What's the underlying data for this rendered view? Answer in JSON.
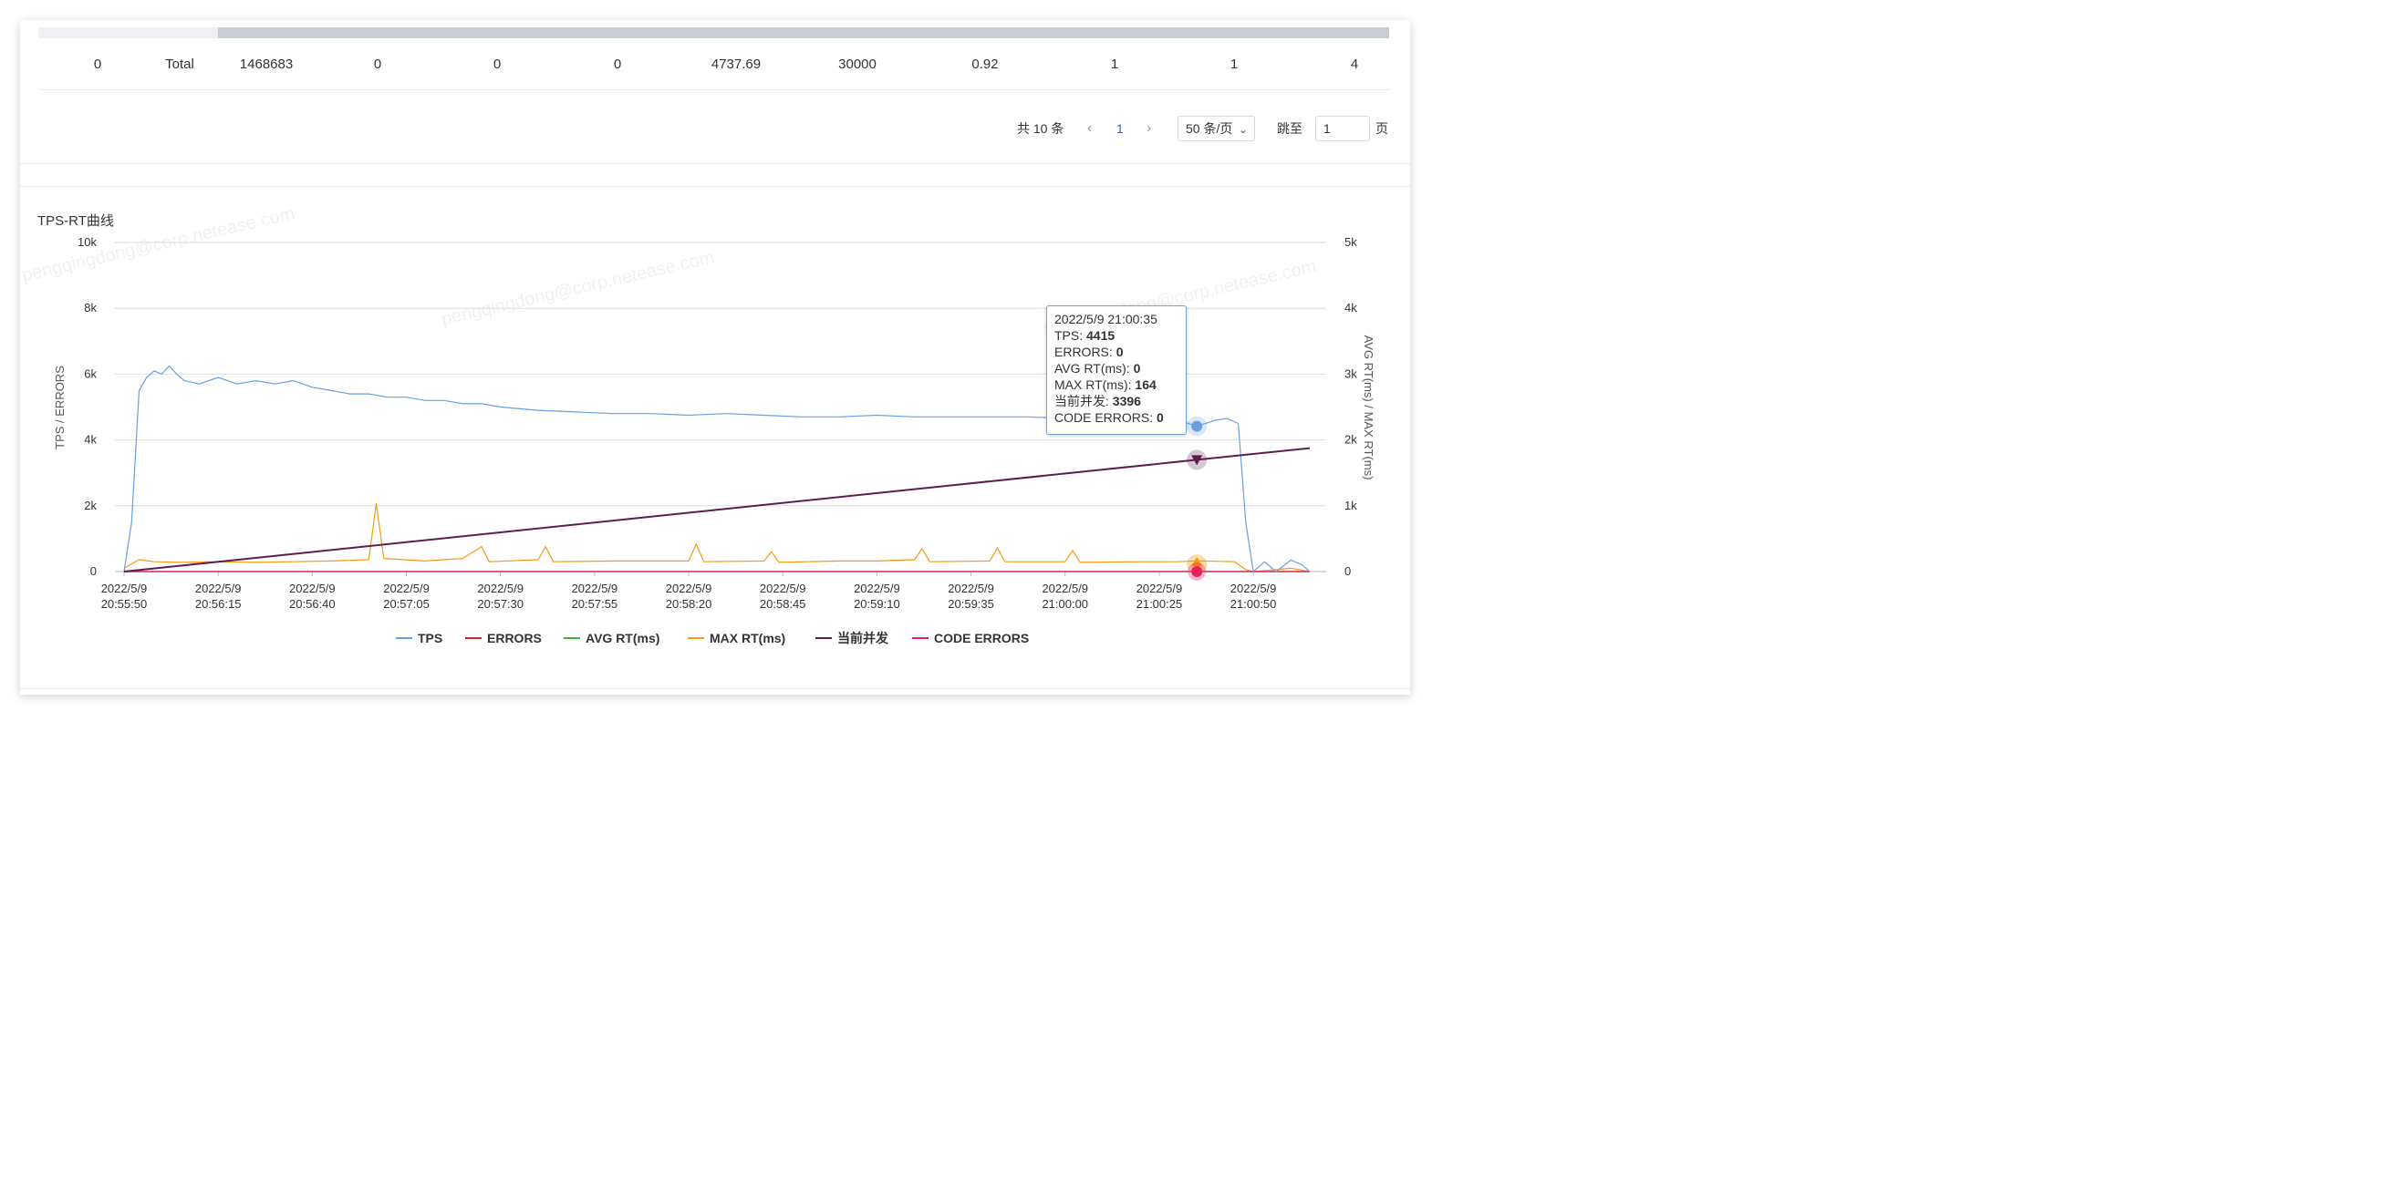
{
  "table": {
    "total_row": [
      "0",
      "Total",
      "1468683",
      "0",
      "0",
      "0",
      "4737.69",
      "30000",
      "0.92",
      "1",
      "1",
      "4"
    ]
  },
  "pagination": {
    "total_text": "共 10 条",
    "prev_icon": "chevron-left-icon",
    "current_page": "1",
    "next_icon": "chevron-right-icon",
    "page_size": "50 条/页",
    "jump_label": "跳至",
    "jump_value": "1",
    "page_unit": "页"
  },
  "watermark": [
    "pengqingdong@corp.netease.com"
  ],
  "chart_data": {
    "type": "line",
    "title": "TPS-RT曲线",
    "y_left_label": "TPS / ERRORS",
    "y_right_label": "AVG RT(ms) / MAX RT(ms)",
    "y_left_ticks": [
      "0",
      "2k",
      "4k",
      "6k",
      "8k",
      "10k"
    ],
    "y_right_ticks": [
      "0",
      "1k",
      "2k",
      "3k",
      "4k",
      "5k"
    ],
    "ylim_left": [
      0,
      10000
    ],
    "ylim_right": [
      0,
      5000
    ],
    "x_ticks": [
      [
        "2022/5/9",
        "20:55:50"
      ],
      [
        "2022/5/9",
        "20:56:15"
      ],
      [
        "2022/5/9",
        "20:56:40"
      ],
      [
        "2022/5/9",
        "20:57:05"
      ],
      [
        "2022/5/9",
        "20:57:30"
      ],
      [
        "2022/5/9",
        "20:57:55"
      ],
      [
        "2022/5/9",
        "20:58:20"
      ],
      [
        "2022/5/9",
        "20:58:45"
      ],
      [
        "2022/5/9",
        "20:59:10"
      ],
      [
        "2022/5/9",
        "20:59:35"
      ],
      [
        "2022/5/9",
        "21:00:00"
      ],
      [
        "2022/5/9",
        "21:00:25"
      ],
      [
        "2022/5/9",
        "21:00:50"
      ]
    ],
    "x_start": "2022/5/9 20:55:50",
    "x_end": "2022/5/9 21:01:05",
    "grid": true,
    "legend_position": "bottom",
    "series": [
      {
        "name": "TPS",
        "axis": "left",
        "color": "#6a9fe0",
        "points": [
          [
            "20:55:50",
            0
          ],
          [
            "20:55:52",
            1500
          ],
          [
            "20:55:54",
            5500
          ],
          [
            "20:55:56",
            5900
          ],
          [
            "20:55:58",
            6100
          ],
          [
            "20:56:00",
            6000
          ],
          [
            "20:56:02",
            6250
          ],
          [
            "20:56:04",
            6000
          ],
          [
            "20:56:06",
            5800
          ],
          [
            "20:56:10",
            5700
          ],
          [
            "20:56:15",
            5900
          ],
          [
            "20:56:20",
            5700
          ],
          [
            "20:56:25",
            5800
          ],
          [
            "20:56:30",
            5700
          ],
          [
            "20:56:35",
            5800
          ],
          [
            "20:56:40",
            5600
          ],
          [
            "20:56:45",
            5500
          ],
          [
            "20:56:50",
            5400
          ],
          [
            "20:56:55",
            5400
          ],
          [
            "20:57:00",
            5300
          ],
          [
            "20:57:05",
            5300
          ],
          [
            "20:57:10",
            5200
          ],
          [
            "20:57:15",
            5200
          ],
          [
            "20:57:20",
            5100
          ],
          [
            "20:57:25",
            5100
          ],
          [
            "20:57:30",
            5000
          ],
          [
            "20:57:40",
            4900
          ],
          [
            "20:57:50",
            4850
          ],
          [
            "20:58:00",
            4800
          ],
          [
            "20:58:10",
            4800
          ],
          [
            "20:58:20",
            4750
          ],
          [
            "20:58:30",
            4800
          ],
          [
            "20:58:40",
            4750
          ],
          [
            "20:58:50",
            4700
          ],
          [
            "20:59:00",
            4700
          ],
          [
            "20:59:10",
            4750
          ],
          [
            "20:59:20",
            4700
          ],
          [
            "20:59:30",
            4700
          ],
          [
            "20:59:40",
            4700
          ],
          [
            "20:59:50",
            4700
          ],
          [
            "21:00:00",
            4650
          ],
          [
            "21:00:10",
            4650
          ],
          [
            "21:00:20",
            4600
          ],
          [
            "21:00:30",
            4600
          ],
          [
            "21:00:35",
            4415
          ],
          [
            "21:00:40",
            4600
          ],
          [
            "21:00:43",
            4650
          ],
          [
            "21:00:46",
            4500
          ],
          [
            "21:00:48",
            1500
          ],
          [
            "21:00:50",
            0
          ],
          [
            "21:00:53",
            300
          ],
          [
            "21:00:56",
            0
          ],
          [
            "21:01:00",
            350
          ],
          [
            "21:01:03",
            200
          ],
          [
            "21:01:05",
            0
          ]
        ]
      },
      {
        "name": "ERRORS",
        "axis": "left",
        "color": "#e02020",
        "points": [
          [
            "20:55:50",
            0
          ],
          [
            "21:01:05",
            0
          ]
        ]
      },
      {
        "name": "AVG RT(ms)",
        "axis": "right",
        "color": "#3cb44b",
        "points": [
          [
            "20:55:50",
            0
          ],
          [
            "21:01:05",
            0
          ]
        ]
      },
      {
        "name": "MAX RT(ms)",
        "axis": "right",
        "color": "#f39c12",
        "points": [
          [
            "20:55:50",
            50
          ],
          [
            "20:55:54",
            180
          ],
          [
            "20:55:58",
            150
          ],
          [
            "20:56:05",
            140
          ],
          [
            "20:56:15",
            150
          ],
          [
            "20:56:25",
            140
          ],
          [
            "20:56:35",
            150
          ],
          [
            "20:56:45",
            160
          ],
          [
            "20:56:55",
            180
          ],
          [
            "20:56:57",
            1030
          ],
          [
            "20:56:59",
            200
          ],
          [
            "20:57:10",
            160
          ],
          [
            "20:57:20",
            200
          ],
          [
            "20:57:25",
            380
          ],
          [
            "20:57:27",
            150
          ],
          [
            "20:57:40",
            180
          ],
          [
            "20:57:42",
            380
          ],
          [
            "20:57:44",
            150
          ],
          [
            "20:58:00",
            160
          ],
          [
            "20:58:20",
            160
          ],
          [
            "20:58:22",
            420
          ],
          [
            "20:58:24",
            150
          ],
          [
            "20:58:40",
            160
          ],
          [
            "20:58:42",
            300
          ],
          [
            "20:58:44",
            140
          ],
          [
            "20:59:00",
            160
          ],
          [
            "20:59:10",
            160
          ],
          [
            "20:59:20",
            180
          ],
          [
            "20:59:22",
            350
          ],
          [
            "20:59:24",
            150
          ],
          [
            "20:59:40",
            160
          ],
          [
            "20:59:42",
            360
          ],
          [
            "20:59:44",
            150
          ],
          [
            "21:00:00",
            150
          ],
          [
            "21:00:02",
            320
          ],
          [
            "21:00:04",
            140
          ],
          [
            "21:00:20",
            150
          ],
          [
            "21:00:30",
            150
          ],
          [
            "21:00:35",
            164
          ],
          [
            "21:00:45",
            150
          ],
          [
            "21:00:48",
            30
          ],
          [
            "21:00:50",
            0
          ],
          [
            "21:01:00",
            50
          ],
          [
            "21:01:05",
            0
          ]
        ]
      },
      {
        "name": "当前并发",
        "axis": "left",
        "color": "#5a1f4f",
        "points": [
          [
            "20:55:50",
            0
          ],
          [
            "21:00:35",
            3396
          ],
          [
            "21:01:05",
            3750
          ]
        ]
      },
      {
        "name": "CODE ERRORS",
        "axis": "left",
        "color": "#e91e63",
        "points": [
          [
            "20:55:50",
            0
          ],
          [
            "21:01:05",
            0
          ]
        ]
      }
    ],
    "tooltip": {
      "time": "2022/5/9 21:00:35",
      "rows": [
        {
          "label": "TPS: ",
          "value": "4415"
        },
        {
          "label": "ERRORS: ",
          "value": "0"
        },
        {
          "label": "AVG RT(ms): ",
          "value": "0"
        },
        {
          "label": "MAX RT(ms): ",
          "value": "164"
        },
        {
          "label": "当前并发: ",
          "value": "3396"
        },
        {
          "label": "CODE ERRORS: ",
          "value": "0"
        }
      ]
    }
  }
}
